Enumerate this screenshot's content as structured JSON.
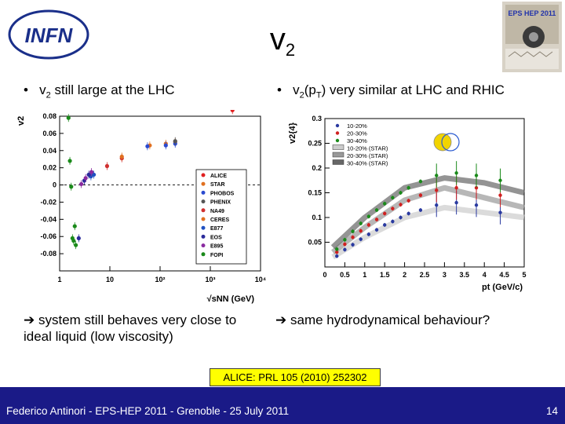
{
  "header": {
    "logo_text": "INFN",
    "title_main": "v",
    "title_sub": "2",
    "conference_badge": "EPS HEP 2011"
  },
  "bullets": {
    "left": {
      "pre": "v",
      "sub": "2",
      "post": " still large at the LHC"
    },
    "right": {
      "pre": "v",
      "sub": "2",
      "mid": "(p",
      "sub2": "T",
      "post": ") very similar at LHC and RHIC"
    }
  },
  "notes": {
    "left": "system still behaves very close to ideal liquid (low viscosity)",
    "right": "same hydrodynamical behaviour?"
  },
  "reference": "ALICE: PRL 105 (2010) 252302",
  "footer": {
    "text": "Federico Antinori - EPS-HEP 2011 - Grenoble - 25 July 2011",
    "page_number": "14"
  },
  "colors": {
    "footer_bg": "#1a1a87",
    "reference_bg": "#ffff00",
    "alice": "#e02020",
    "star": "#e07020",
    "fopi": "#1a8a1a"
  },
  "chart_data": [
    {
      "type": "scatter",
      "x_scale": "log",
      "xlabel": "√sNN (GeV)",
      "ylabel": "v2",
      "xlim": [
        1,
        10000
      ],
      "ylim": [
        -0.1,
        0.08
      ],
      "x_ticks": [
        "1",
        "10",
        "10²",
        "10³",
        "10⁴"
      ],
      "y_ticks": [
        "0.08",
        "0.06",
        "0.04",
        "0.02",
        "0",
        "-0.02",
        "-0.04",
        "-0.06",
        "-0.08"
      ],
      "legend_position": "bottom-right",
      "series": [
        {
          "name": "ALICE",
          "color": "#e02020",
          "points": [
            [
              2760,
              0.087
            ]
          ]
        },
        {
          "name": "STAR",
          "color": "#e07020",
          "points": [
            [
              62.4,
              0.046
            ],
            [
              130,
              0.048
            ],
            [
              200,
              0.05
            ]
          ]
        },
        {
          "name": "PHOBOS",
          "color": "#2a4ad0",
          "points": [
            [
              56,
              0.045
            ],
            [
              130,
              0.046
            ],
            [
              200,
              0.048
            ]
          ]
        },
        {
          "name": "PHENIX",
          "color": "#555555",
          "points": [
            [
              200,
              0.051
            ]
          ]
        },
        {
          "name": "NA49",
          "color": "#d03030",
          "points": [
            [
              8.8,
              0.022
            ],
            [
              17.3,
              0.031
            ]
          ]
        },
        {
          "name": "CERES",
          "color": "#e07020",
          "points": [
            [
              17.3,
              0.033
            ]
          ]
        },
        {
          "name": "E877",
          "color": "#2050c0",
          "points": [
            [
              4.8,
              0.012
            ],
            [
              4.2,
              0.01
            ]
          ]
        },
        {
          "name": "EOS",
          "color": "#2a2a9a",
          "points": [
            [
              2.4,
              -0.062
            ],
            [
              3.1,
              0.005
            ],
            [
              3.8,
              0.012
            ]
          ]
        },
        {
          "name": "E895",
          "color": "#8a2aa0",
          "points": [
            [
              2.7,
              0.001
            ],
            [
              3.3,
              0.008
            ],
            [
              4.3,
              0.015
            ]
          ]
        },
        {
          "name": "FOPI",
          "color": "#1a8a1a",
          "points": [
            [
              1.5,
              0.078
            ],
            [
              1.6,
              0.028
            ],
            [
              1.7,
              -0.002
            ],
            [
              1.8,
              -0.062
            ],
            [
              1.9,
              -0.065
            ],
            [
              2.0,
              -0.048
            ],
            [
              2.1,
              -0.07
            ]
          ]
        }
      ]
    },
    {
      "type": "line",
      "xlabel": "pt (GeV/c)",
      "ylabel": "v2{4}",
      "xlim": [
        0,
        5
      ],
      "ylim": [
        0,
        0.3
      ],
      "x_ticks": [
        "0",
        "0.5",
        "1",
        "1.5",
        "2",
        "2.5",
        "3",
        "3.5",
        "4",
        "4.5",
        "5"
      ],
      "y_ticks": [
        "0.05",
        "0.1",
        "0.15",
        "0.2",
        "0.25",
        "0.3"
      ],
      "legend_position": "top-left",
      "series": [
        {
          "name": "10-20%",
          "color": "#2a3aa0",
          "x": [
            0.3,
            0.5,
            0.7,
            0.9,
            1.1,
            1.3,
            1.5,
            1.7,
            1.9,
            2.1,
            2.4,
            2.8,
            3.3,
            3.8,
            4.4
          ],
          "y": [
            0.022,
            0.035,
            0.045,
            0.056,
            0.066,
            0.075,
            0.085,
            0.092,
            0.1,
            0.108,
            0.115,
            0.125,
            0.13,
            0.125,
            0.11
          ]
        },
        {
          "name": "20-30%",
          "color": "#d02020",
          "x": [
            0.3,
            0.5,
            0.7,
            0.9,
            1.1,
            1.3,
            1.5,
            1.7,
            1.9,
            2.1,
            2.4,
            2.8,
            3.3,
            3.8,
            4.4
          ],
          "y": [
            0.03,
            0.046,
            0.06,
            0.073,
            0.085,
            0.096,
            0.108,
            0.118,
            0.126,
            0.134,
            0.145,
            0.155,
            0.16,
            0.16,
            0.145
          ]
        },
        {
          "name": "30-40%",
          "color": "#1a8a1a",
          "x": [
            0.3,
            0.5,
            0.7,
            0.9,
            1.1,
            1.3,
            1.5,
            1.7,
            1.9,
            2.1,
            2.4,
            2.8,
            3.3,
            3.8,
            4.4
          ],
          "y": [
            0.036,
            0.055,
            0.072,
            0.088,
            0.102,
            0.115,
            0.128,
            0.14,
            0.15,
            0.16,
            0.173,
            0.185,
            0.19,
            0.185,
            0.175
          ]
        },
        {
          "name": "10-20% (STAR)",
          "color": "#cccccc",
          "x": [
            0.2,
            1.0,
            2.0,
            3.0,
            4.0,
            5.0
          ],
          "y": [
            0.02,
            0.06,
            0.1,
            0.12,
            0.11,
            0.1
          ]
        },
        {
          "name": "20-30% (STAR)",
          "color": "#999999",
          "x": [
            0.2,
            1.0,
            2.0,
            3.0,
            4.0,
            5.0
          ],
          "y": [
            0.03,
            0.08,
            0.135,
            0.16,
            0.14,
            0.12
          ]
        },
        {
          "name": "30-40% (STAR)",
          "color": "#666666",
          "x": [
            0.2,
            1.0,
            2.0,
            3.0,
            4.0,
            5.0
          ],
          "y": [
            0.04,
            0.1,
            0.16,
            0.18,
            0.17,
            0.15
          ]
        }
      ]
    }
  ]
}
